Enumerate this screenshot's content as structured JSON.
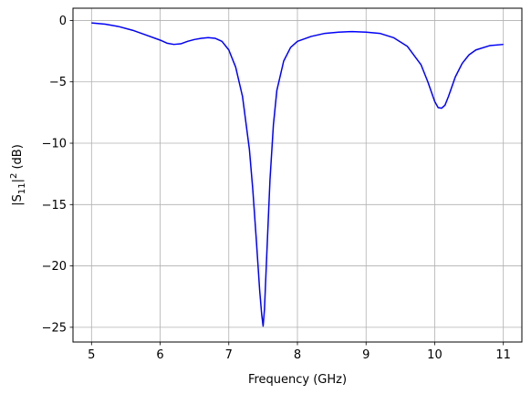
{
  "chart_data": {
    "type": "line",
    "title": "",
    "xlabel": "Frequency (GHz)",
    "ylabel": "|S11|² (dB)",
    "ylabel_parts": {
      "pre": "|S",
      "sub": "11",
      "mid": "|",
      "sup": "2",
      "post": " (dB)"
    },
    "xlim": [
      4.73,
      11.27
    ],
    "ylim": [
      -26.2,
      1.0
    ],
    "xticks": [
      5,
      6,
      7,
      8,
      9,
      10,
      11
    ],
    "yticks": [
      0,
      -5,
      -10,
      -15,
      -20,
      -25
    ],
    "xtick_labels": [
      "5",
      "6",
      "7",
      "8",
      "9",
      "10",
      "11"
    ],
    "ytick_labels": [
      "0",
      "−5",
      "−10",
      "−15",
      "−20",
      "−25"
    ],
    "grid": true,
    "legend": "none",
    "line_color": "#0000ff",
    "series": [
      {
        "x": [
          5.0,
          5.2,
          5.4,
          5.6,
          5.8,
          6.0,
          6.1,
          6.2,
          6.3,
          6.4,
          6.5,
          6.6,
          6.7,
          6.8,
          6.9,
          7.0,
          7.1,
          7.2,
          7.3,
          7.35,
          7.4,
          7.45,
          7.48,
          7.5,
          7.52,
          7.55,
          7.6,
          7.65,
          7.7,
          7.8,
          7.9,
          8.0,
          8.2,
          8.4,
          8.6,
          8.8,
          9.0,
          9.2,
          9.4,
          9.6,
          9.8,
          9.9,
          10.0,
          10.05,
          10.1,
          10.15,
          10.2,
          10.3,
          10.4,
          10.5,
          10.6,
          10.8,
          11.0
        ],
        "y": [
          -0.2,
          -0.3,
          -0.5,
          -0.8,
          -1.2,
          -1.6,
          -1.85,
          -1.95,
          -1.9,
          -1.7,
          -1.55,
          -1.45,
          -1.4,
          -1.45,
          -1.7,
          -2.4,
          -3.8,
          -6.2,
          -10.5,
          -13.8,
          -17.8,
          -22.0,
          -24.0,
          -24.9,
          -23.5,
          -19.5,
          -13.0,
          -8.5,
          -5.7,
          -3.3,
          -2.2,
          -1.7,
          -1.3,
          -1.05,
          -0.95,
          -0.9,
          -0.95,
          -1.05,
          -1.4,
          -2.1,
          -3.6,
          -5.0,
          -6.6,
          -7.1,
          -7.15,
          -6.9,
          -6.2,
          -4.6,
          -3.5,
          -2.8,
          -2.4,
          -2.05,
          -1.95
        ]
      }
    ]
  }
}
